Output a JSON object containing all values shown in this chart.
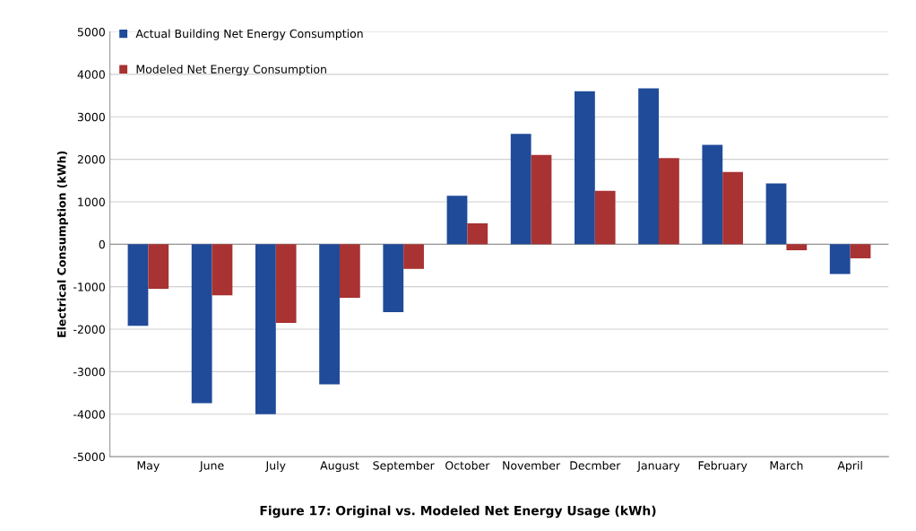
{
  "chart_data": {
    "type": "bar",
    "ylabel": "Electrical Consumption (kWh)",
    "categories": [
      "May",
      "June",
      "July",
      "August",
      "September",
      "October",
      "November",
      "Decmber",
      "January",
      "February",
      "March",
      "April"
    ],
    "series": [
      {
        "name": "Actual Building Net Energy Consumption",
        "color": "#1f4b99",
        "values": [
          -1920,
          -3740,
          -4000,
          -3300,
          -1600,
          1140,
          2600,
          3600,
          3670,
          2340,
          1430,
          -700
        ]
      },
      {
        "name": "Modeled Net Energy Consumption",
        "color": "#a93232",
        "values": [
          -1050,
          -1200,
          -1850,
          -1260,
          -580,
          490,
          2100,
          1260,
          2030,
          1700,
          -140,
          -330
        ]
      }
    ],
    "ylim": [
      -5000,
      5000
    ],
    "yticks": [
      -5000,
      -4000,
      -3000,
      -2000,
      -1000,
      0,
      1000,
      2000,
      3000,
      4000,
      5000
    ],
    "grid": "y",
    "legend": "top left",
    "annotations": [
      "Figure 17: Original vs. Modeled Net Energy Usage (kWh)"
    ]
  }
}
